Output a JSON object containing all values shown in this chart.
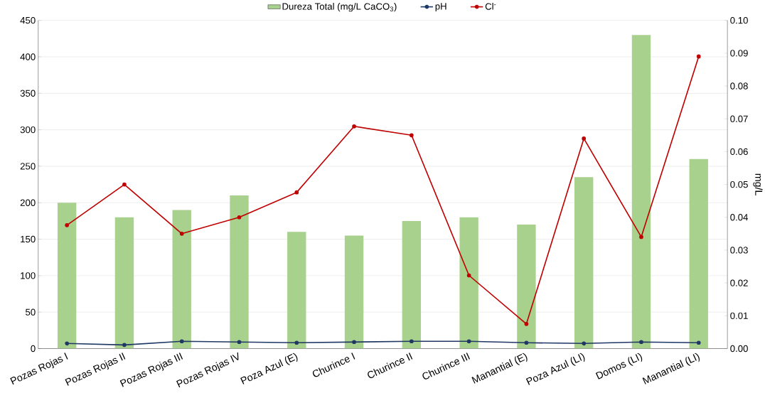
{
  "chart_data": {
    "type": "bar",
    "y2label": "mg/L",
    "categories": [
      "Pozas Rojas I",
      "Pozas Rojas II",
      "Pozas Rojas III",
      "Pozas Rojas IV",
      "Poza Azul (E)",
      "Churince I",
      "Churince II",
      "Churince III",
      "Manantial (E)",
      "Poza Azul (LI)",
      "Domos (LI)",
      "Manantial (LI)"
    ],
    "series": [
      {
        "name": "Dureza Total (mg/L CaCO$_{3}$)",
        "color": "#a9d18e",
        "values": [
          200,
          180,
          190,
          210,
          160,
          155,
          175,
          180,
          170,
          235,
          430,
          260
        ]
      },
      {
        "name": "pH",
        "type": "line",
        "color": "#1f3864",
        "values": [
          7,
          5,
          10,
          9,
          8,
          9,
          10,
          10,
          8,
          7,
          9,
          8
        ]
      },
      {
        "name": "Cl$^{-}$",
        "type": "line",
        "axis": "y2",
        "color": "#c00000",
        "values": [
          0.0376,
          0.05,
          0.035,
          0.04,
          0.0476,
          0.0677,
          0.065,
          0.0223,
          0.0075,
          0.064,
          0.034,
          0.089
        ]
      }
    ],
    "ylim": [
      0,
      450
    ],
    "yticks": [
      0,
      50,
      100,
      150,
      200,
      250,
      300,
      350,
      400,
      450
    ],
    "y2lim": [
      0,
      0.1
    ],
    "y2ticks": [
      {
        "value": 0,
        "label": "0.00"
      },
      {
        "value": 0.01,
        "label": "0.01"
      },
      {
        "value": 0.02,
        "label": "0.02"
      },
      {
        "value": 0.03,
        "label": "0.03"
      },
      {
        "value": 0.04,
        "label": "0.04"
      },
      {
        "value": 0.05,
        "label": "0.05"
      },
      {
        "value": 0.06,
        "label": "0.06"
      },
      {
        "value": 0.07,
        "label": "0.07"
      },
      {
        "value": 0.08,
        "label": "0.08"
      },
      {
        "value": 0.09,
        "label": "0.09"
      },
      {
        "value": 0.1,
        "label": "0.10"
      }
    ],
    "grid": "y",
    "legend": "top",
    "marker": "circle",
    "line_style": "solid"
  }
}
